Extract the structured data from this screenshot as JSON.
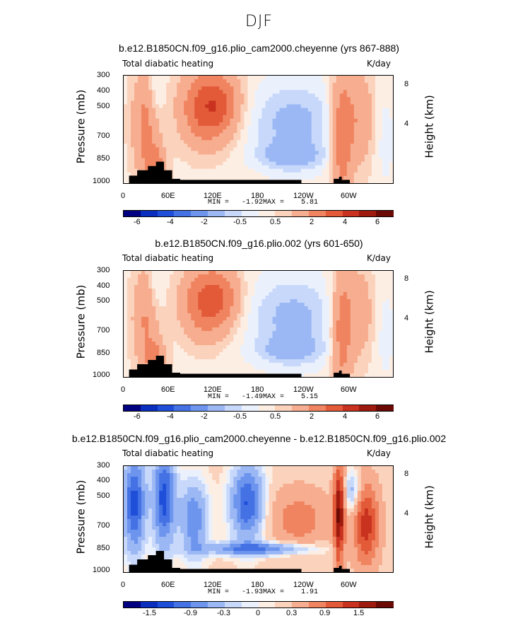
{
  "figure_title": "DJF",
  "colors": {
    "palette": [
      "#000080",
      "#0a2fbf",
      "#1f4fd8",
      "#4472e4",
      "#6d95ee",
      "#9bb8f5",
      "#c7d8fb",
      "#eaf1fd",
      "#fdeee4",
      "#fbd2bc",
      "#f7ad8f",
      "#f08460",
      "#e35a39",
      "#c8321f",
      "#9e1a0e",
      "#6b0a05"
    ],
    "land": "#000000"
  },
  "chart_data": [
    {
      "type": "heatmap",
      "title": "b.e12.B1850CN.f09_g16.plio_cam2000.cheyenne (yrs 867-888)",
      "left_label": "Total diabatic heating",
      "right_label": "K/day",
      "ylabel": "Pressure (mb)",
      "ylabel_right": "Height (km)",
      "yticks": [
        "300",
        "400",
        "500",
        "700",
        "850",
        "1000"
      ],
      "yticks_right": [
        "8",
        "4"
      ],
      "xticks": [
        "0",
        "60E",
        "120E",
        "180",
        "120W",
        "60W"
      ],
      "min_label": "MIN =   -1.92",
      "max_label": "MAX =    5.81",
      "min": -1.92,
      "max": 5.81,
      "colorbar_labels": [
        "-6",
        "-4",
        "-2",
        "-0.5",
        "0.5",
        "2",
        "4",
        "6"
      ],
      "colorbar_levels": [
        -7,
        -6,
        -5,
        -4,
        -3,
        -2,
        -1,
        -0.5,
        0,
        0.5,
        1,
        2,
        3,
        4,
        5,
        6,
        7
      ]
    },
    {
      "type": "heatmap",
      "title": "b.e12.B1850CN.f09_g16.plio.002 (yrs 601-650)",
      "left_label": "Total diabatic heating",
      "right_label": "K/day",
      "ylabel": "Pressure (mb)",
      "ylabel_right": "Height (km)",
      "yticks": [
        "300",
        "400",
        "500",
        "700",
        "850",
        "1000"
      ],
      "yticks_right": [
        "8",
        "4"
      ],
      "xticks": [
        "0",
        "60E",
        "120E",
        "180",
        "120W",
        "60W"
      ],
      "min_label": "MIN =   -1.49",
      "max_label": "MAX =    5.15",
      "min": -1.49,
      "max": 5.15,
      "colorbar_labels": [
        "-6",
        "-4",
        "-2",
        "-0.5",
        "0.5",
        "2",
        "4",
        "6"
      ],
      "colorbar_levels": [
        -7,
        -6,
        -5,
        -4,
        -3,
        -2,
        -1,
        -0.5,
        0,
        0.5,
        1,
        2,
        3,
        4,
        5,
        6,
        7
      ]
    },
    {
      "type": "heatmap",
      "title": "b.e12.B1850CN.f09_g16.plio_cam2000.cheyenne - b.e12.B1850CN.f09_g16.plio.002",
      "left_label": "Total diabatic heating",
      "right_label": "K/day",
      "ylabel": "Pressure (mb)",
      "ylabel_right": "Height (km)",
      "yticks": [
        "300",
        "400",
        "500",
        "700",
        "850",
        "1000"
      ],
      "yticks_right": [
        "8",
        "4"
      ],
      "xticks": [
        "0",
        "60E",
        "120E",
        "180",
        "120W",
        "60W"
      ],
      "min_label": "MIN =   -1.93",
      "max_label": "MAX =    1.91",
      "min": -1.93,
      "max": 1.91,
      "colorbar_labels": [
        "-1.5",
        "-0.9",
        "-0.3",
        "0",
        "0.3",
        "0.9",
        "1.5"
      ],
      "colorbar_levels": [
        -2.1,
        -1.8,
        -1.5,
        -1.2,
        -0.9,
        -0.6,
        -0.3,
        -0.1,
        0,
        0.1,
        0.3,
        0.6,
        0.9,
        1.2,
        1.5,
        1.8,
        2.1
      ]
    }
  ]
}
